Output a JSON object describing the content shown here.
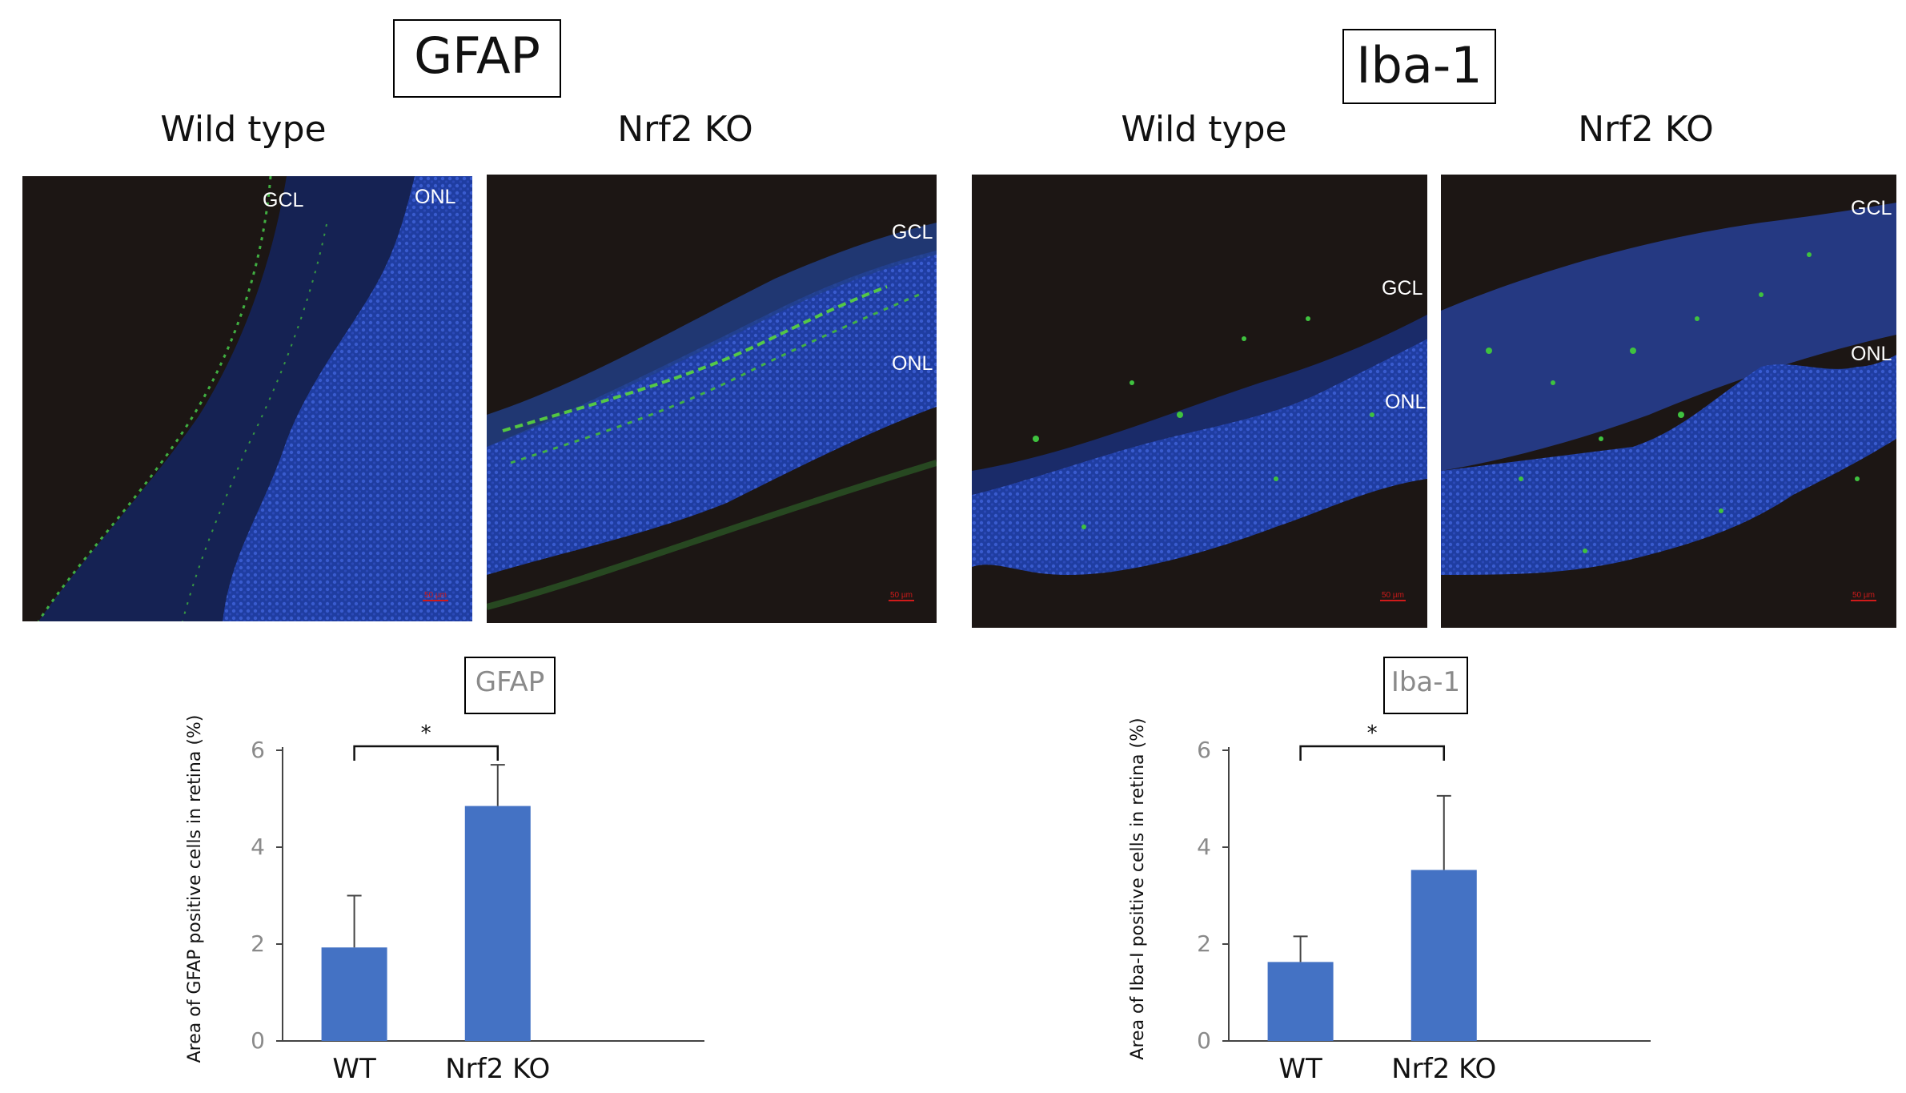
{
  "panels": [
    {
      "title": "GFAP",
      "wt_label": "Wild type",
      "ko_label": "Nrf2 KO",
      "wt_image": {
        "labels": [
          "GCL",
          "ONL"
        ],
        "scale": "50 µm"
      },
      "ko_image": {
        "labels": [
          "GCL",
          "ONL"
        ],
        "scale": "50 µm"
      }
    },
    {
      "title": "Iba-1",
      "wt_label": "Wild type",
      "ko_label": "Nrf2 KO",
      "wt_image": {
        "labels": [
          "GCL",
          "ONL"
        ],
        "scale": "50 µm"
      },
      "ko_image": {
        "labels": [
          "GCL",
          "ONL"
        ],
        "scale": "50 µm"
      }
    }
  ],
  "colors": {
    "bar": "#4472c4",
    "axis": "#444444",
    "tick_text": "#8a8a8a"
  },
  "chart_data": [
    {
      "type": "bar",
      "title": "GFAP",
      "categories": [
        "WT",
        "Nrf2 KO"
      ],
      "values": [
        1.93,
        4.85
      ],
      "errors": [
        1.07,
        0.85
      ],
      "ylabel": "Area of GFAP positive cells in retina (%)",
      "xlabel": "",
      "ylim": [
        0,
        6
      ],
      "yticks": [
        0,
        2,
        4,
        6
      ],
      "significance": "*",
      "grid": false
    },
    {
      "type": "bar",
      "title": "Iba-1",
      "categories": [
        "WT",
        "Nrf2 KO"
      ],
      "values": [
        1.63,
        3.53
      ],
      "errors": [
        0.53,
        1.53
      ],
      "ylabel": "Area  of Iba-I positive cells in retina (%)",
      "xlabel": "",
      "ylim": [
        0,
        6
      ],
      "yticks": [
        0,
        2,
        4,
        6
      ],
      "significance": "*",
      "grid": false
    }
  ]
}
